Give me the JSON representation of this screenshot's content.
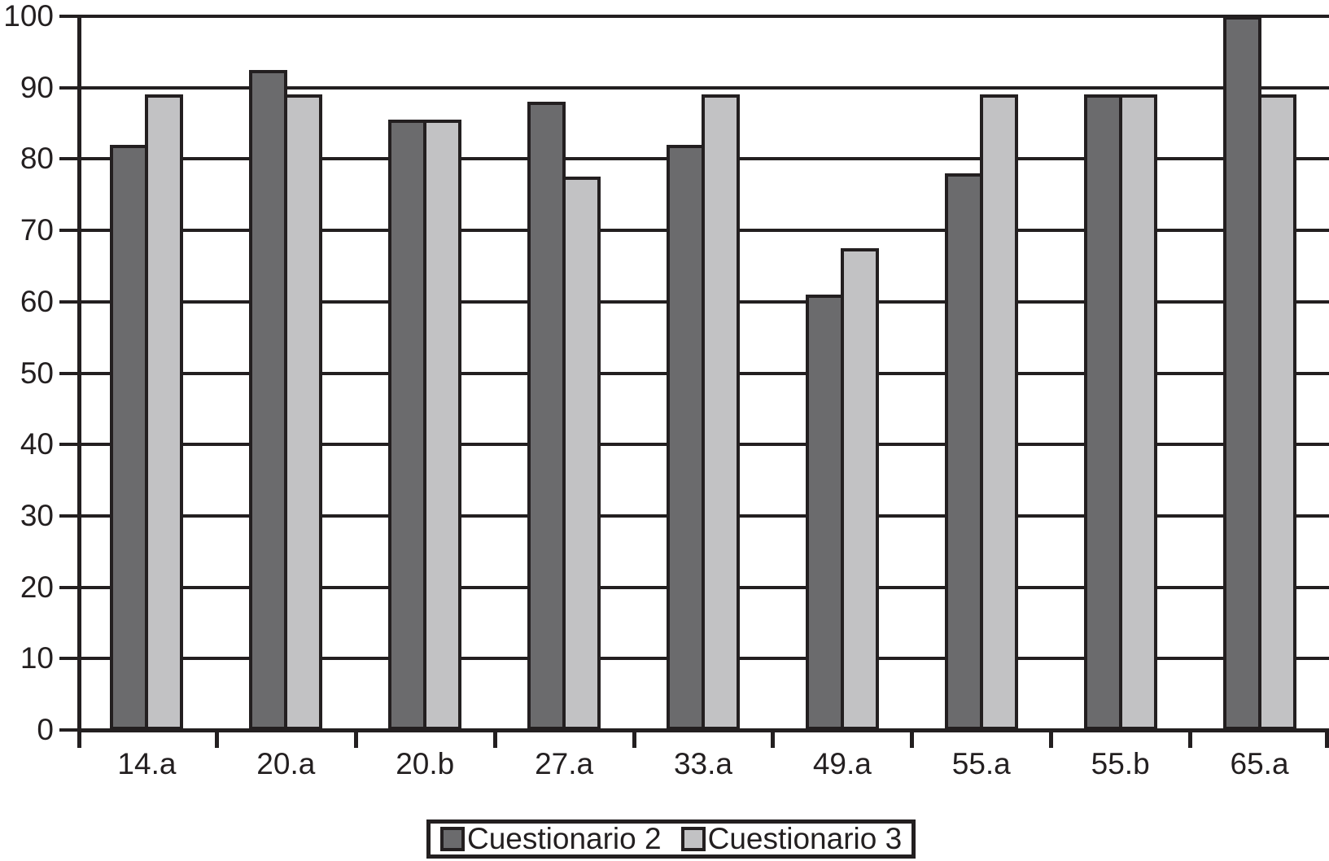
{
  "chart_data": {
    "type": "bar",
    "title": "",
    "categories": [
      "14.a",
      "20.a",
      "20.b",
      "27.a",
      "33.a",
      "49.a",
      "55.a",
      "55.b",
      "65.a"
    ],
    "series": [
      {
        "name": "Cuestionario 2",
        "color": "#6b6b6d",
        "values": [
          82,
          92.5,
          85.5,
          88,
          82,
          61,
          78,
          89,
          100
        ]
      },
      {
        "name": "Cuestionario 3",
        "color": "#c2c2c4",
        "values": [
          89,
          89,
          85.5,
          77.5,
          89,
          67.5,
          89,
          89,
          89
        ]
      }
    ],
    "xlabel": "",
    "ylabel": "",
    "ylim": [
      0,
      100
    ],
    "ytick_step": 10,
    "ytick_labels": [
      "0",
      "10",
      "20",
      "30",
      "40",
      "50",
      "60",
      "70",
      "80",
      "90",
      "100"
    ],
    "grid": "horizontal",
    "axis_color": "#231f20",
    "background_color": "#ffffff",
    "legend_position": "bottom-center"
  }
}
